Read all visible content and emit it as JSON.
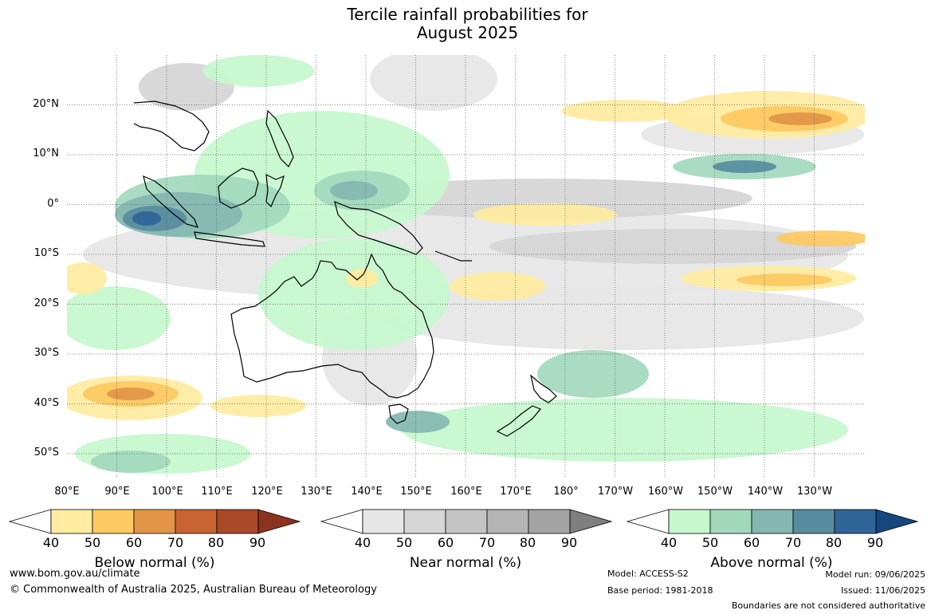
{
  "title": {
    "line1": "Tercile rainfall probabilities for",
    "line2": "August 2025"
  },
  "latitude_labels": [
    "20°N",
    "10°N",
    "0°",
    "10°S",
    "20°S",
    "30°S",
    "40°S",
    "50°S"
  ],
  "longitude_labels": [
    "80°E",
    "90°E",
    "100°E",
    "110°E",
    "120°E",
    "130°E",
    "140°E",
    "150°E",
    "160°E",
    "170°E",
    "180°",
    "170°W",
    "160°W",
    "150°W",
    "140°W",
    "130°W"
  ],
  "colorbars": [
    {
      "label": "Below normal (%)",
      "ticks": [
        "40",
        "50",
        "60",
        "70",
        "80",
        "90"
      ],
      "colors": [
        "#ffffff",
        "#ffeca0",
        "#fdc962",
        "#e29547",
        "#c96332",
        "#a8492a",
        "#8c3320"
      ]
    },
    {
      "label": "Near normal (%)",
      "ticks": [
        "40",
        "50",
        "60",
        "70",
        "80",
        "90"
      ],
      "colors": [
        "#ffffff",
        "#e6e6e6",
        "#d5d5d5",
        "#c4c4c4",
        "#b4b4b4",
        "#a3a3a3",
        "#7f7f7f"
      ]
    },
    {
      "label": "Above normal (%)",
      "ticks": [
        "40",
        "50",
        "60",
        "70",
        "80",
        "90"
      ],
      "colors": [
        "#ffffff",
        "#c6f7cd",
        "#a2d9bd",
        "#84b7b0",
        "#588c9f",
        "#2e6596",
        "#16477e"
      ]
    }
  ],
  "footer": {
    "website": "www.bom.gov.au/climate",
    "copyright": "© Commonwealth of Australia 2025, Australian Bureau of Meteorology",
    "model": "Model: ACCESS-S2",
    "base_period": "Base period: 1981-2018",
    "model_run": "Model run: 09/06/2025",
    "issued": "Issued: 11/06/2025",
    "disclaimer": "Boundaries are not considered authoritative"
  }
}
